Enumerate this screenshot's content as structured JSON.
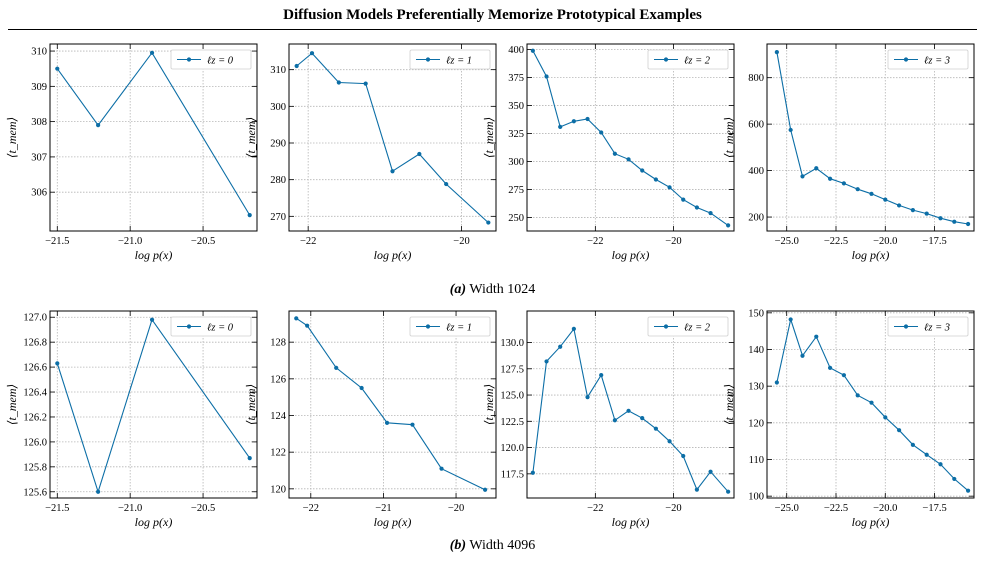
{
  "header": {
    "title": "Diffusion Models Preferentially Memorize Prototypical Examples"
  },
  "captions": [
    {
      "label": "(a)",
      "text": "Width 1024"
    },
    {
      "label": "(b)",
      "text": "Width 4096"
    }
  ],
  "footer": {
    "text": ""
  },
  "colors": {
    "series": "#0C6EA6",
    "grid": "#b5b5b5"
  },
  "chart_data": [
    {
      "type": "line",
      "row": "(a) Width 1024",
      "legend": "ℓz = 0",
      "legend_placement": "top-right",
      "xlabel": "log p(x)",
      "ylabel": "⟨t_mem⟩",
      "grid": true,
      "xlim": [
        -21.55,
        -20.13
      ],
      "ylim": [
        304.9,
        310.2
      ],
      "xticks": [
        -21.5,
        -21.0,
        -20.5
      ],
      "xticklabels": [
        "−21.5",
        "−21.0",
        "−20.5"
      ],
      "yticks": [
        306,
        307,
        308,
        309,
        310
      ],
      "yticklabels": [
        "306",
        "307",
        "308",
        "309",
        "310"
      ],
      "x": [
        -21.5,
        -21.22,
        -20.85,
        -20.18
      ],
      "y": [
        309.5,
        307.9,
        309.95,
        305.35
      ]
    },
    {
      "type": "line",
      "row": "(a) Width 1024",
      "legend": "ℓz = 1",
      "legend_placement": "top-right",
      "xlabel": "log p(x)",
      "ylabel": "⟨t_mem⟩",
      "grid": true,
      "xlim": [
        -22.25,
        -19.55
      ],
      "ylim": [
        266,
        317
      ],
      "xticks": [
        -22,
        -20
      ],
      "xticklabels": [
        "−22",
        "−20"
      ],
      "yticks": [
        270,
        280,
        290,
        300,
        310
      ],
      "yticklabels": [
        "270",
        "280",
        "290",
        "300",
        "310"
      ],
      "x": [
        -22.15,
        -21.95,
        -21.6,
        -21.25,
        -20.9,
        -20.55,
        -20.2,
        -19.65
      ],
      "y": [
        311,
        314.5,
        306.5,
        306.2,
        282.3,
        287,
        278.8,
        268.3
      ]
    },
    {
      "type": "line",
      "row": "(a) Width 1024",
      "legend": "ℓz = 2",
      "legend_placement": "top-right",
      "xlabel": "log p(x)",
      "ylabel": "⟨t_mem⟩",
      "grid": true,
      "xlim": [
        -23.75,
        -18.45
      ],
      "ylim": [
        238,
        405
      ],
      "xticks": [
        -22,
        -20
      ],
      "xticklabels": [
        "−22",
        "−20"
      ],
      "yticks": [
        250,
        275,
        300,
        325,
        350,
        375,
        400
      ],
      "yticklabels": [
        "250",
        "275",
        "300",
        "325",
        "350",
        "375",
        "400"
      ],
      "x": [
        -23.6,
        -23.25,
        -22.9,
        -22.55,
        -22.2,
        -21.85,
        -21.5,
        -21.15,
        -20.8,
        -20.45,
        -20.1,
        -19.75,
        -19.4,
        -19.05,
        -18.6
      ],
      "y": [
        399,
        376,
        331,
        336,
        338,
        326,
        307,
        302,
        292,
        284,
        277,
        266,
        259,
        254,
        243
      ]
    },
    {
      "type": "line",
      "row": "(a) Width 1024",
      "legend": "ℓz = 3",
      "legend_placement": "top-right",
      "xlabel": "log p(x)",
      "ylabel": "⟨t_mem⟩",
      "grid": true,
      "xlim": [
        -26.0,
        -15.5
      ],
      "ylim": [
        140,
        945
      ],
      "xticks": [
        -25.0,
        -22.5,
        -20.0,
        -17.5
      ],
      "xticklabels": [
        "−25.0",
        "−22.5",
        "−20.0",
        "−17.5"
      ],
      "yticks": [
        200,
        400,
        600,
        800
      ],
      "yticklabels": [
        "200",
        "400",
        "600",
        "800"
      ],
      "x": [
        -25.5,
        -24.8,
        -24.2,
        -23.5,
        -22.8,
        -22.1,
        -21.4,
        -20.7,
        -20.0,
        -19.3,
        -18.6,
        -17.9,
        -17.2,
        -16.5,
        -15.8
      ],
      "y": [
        910,
        575,
        375,
        410,
        365,
        345,
        320,
        300,
        275,
        250,
        230,
        215,
        195,
        180,
        170
      ]
    },
    {
      "type": "line",
      "row": "(b) Width 4096",
      "legend": "ℓz = 0",
      "legend_placement": "top-right",
      "xlabel": "log p(x)",
      "ylabel": "⟨t_mem⟩",
      "grid": true,
      "xlim": [
        -21.55,
        -20.13
      ],
      "ylim": [
        125.55,
        127.05
      ],
      "xticks": [
        -21.5,
        -21.0,
        -20.5
      ],
      "xticklabels": [
        "−21.5",
        "−21.0",
        "−20.5"
      ],
      "yticks": [
        125.6,
        125.8,
        126.0,
        126.2,
        126.4,
        126.6,
        126.8,
        127.0
      ],
      "yticklabels": [
        "125.6",
        "125.8",
        "126.0",
        "126.2",
        "126.4",
        "126.6",
        "126.8",
        "127.0"
      ],
      "x": [
        -21.5,
        -21.22,
        -20.85,
        -20.18
      ],
      "y": [
        126.63,
        125.6,
        126.98,
        125.87
      ]
    },
    {
      "type": "line",
      "row": "(b) Width 4096",
      "legend": "ℓz = 1",
      "legend_placement": "top-right",
      "xlabel": "log p(x)",
      "ylabel": "⟨t_mem⟩",
      "grid": true,
      "xlim": [
        -22.3,
        -19.45
      ],
      "ylim": [
        119.5,
        129.7
      ],
      "xticks": [
        -22,
        -21,
        -20
      ],
      "xticklabels": [
        "−22",
        "−21",
        "−20"
      ],
      "yticks": [
        120,
        122,
        124,
        126,
        128
      ],
      "yticklabels": [
        "120",
        "122",
        "124",
        "126",
        "128"
      ],
      "x": [
        -22.2,
        -22.05,
        -21.65,
        -21.3,
        -20.95,
        -20.6,
        -20.2,
        -19.6
      ],
      "y": [
        129.3,
        128.9,
        126.6,
        125.5,
        123.6,
        123.5,
        121.1,
        119.95
      ]
    },
    {
      "type": "line",
      "row": "(b) Width 4096",
      "legend": "ℓz = 2",
      "legend_placement": "top-right",
      "xlabel": "log p(x)",
      "ylabel": "⟨t_mem⟩",
      "grid": true,
      "xlim": [
        -23.75,
        -18.45
      ],
      "ylim": [
        115.2,
        133
      ],
      "xticks": [
        -22,
        -20
      ],
      "xticklabels": [
        "−22",
        "−20"
      ],
      "yticks": [
        117.5,
        120.0,
        122.5,
        125.0,
        127.5,
        130.0
      ],
      "yticklabels": [
        "117.5",
        "120.0",
        "122.5",
        "125.0",
        "127.5",
        "130.0"
      ],
      "x": [
        -23.6,
        -23.25,
        -22.9,
        -22.55,
        -22.2,
        -21.85,
        -21.5,
        -21.15,
        -20.8,
        -20.45,
        -20.1,
        -19.75,
        -19.4,
        -19.05,
        -18.6
      ],
      "y": [
        117.6,
        128.2,
        129.6,
        131.3,
        124.8,
        126.9,
        122.6,
        123.5,
        122.8,
        121.8,
        120.6,
        119.2,
        116.0,
        117.7,
        115.8
      ]
    },
    {
      "type": "line",
      "row": "(b) Width 4096",
      "legend": "ℓz = 3",
      "legend_placement": "top-right",
      "xlabel": "log p(x)",
      "ylabel": "⟨t_mem⟩",
      "grid": true,
      "xlim": [
        -26.0,
        -15.5
      ],
      "ylim": [
        99.5,
        150.5
      ],
      "xticks": [
        -25.0,
        -22.5,
        -20.0,
        -17.5
      ],
      "xticklabels": [
        "−25.0",
        "−22.5",
        "−20.0",
        "−17.5"
      ],
      "yticks": [
        100,
        110,
        120,
        130,
        140,
        150
      ],
      "yticklabels": [
        "100",
        "110",
        "120",
        "130",
        "140",
        "150"
      ],
      "x": [
        -25.5,
        -24.8,
        -24.2,
        -23.5,
        -22.8,
        -22.1,
        -21.4,
        -20.7,
        -20.0,
        -19.3,
        -18.6,
        -17.9,
        -17.2,
        -16.5,
        -15.8
      ],
      "y": [
        131,
        148.2,
        138.3,
        143.5,
        135,
        133,
        127.5,
        125.5,
        121.5,
        118,
        114,
        111.3,
        108.7,
        104.7,
        101.5
      ]
    }
  ]
}
